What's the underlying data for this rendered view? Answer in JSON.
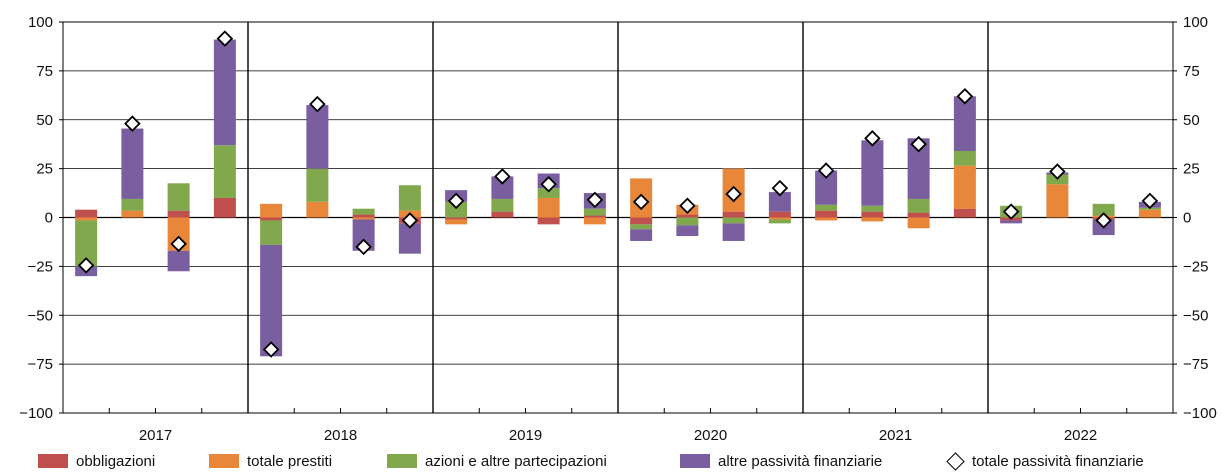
{
  "chart_data": {
    "type": "bar",
    "stacked": true,
    "title": "",
    "xlabel": "",
    "ylabel": "",
    "ylim": [
      -100,
      100
    ],
    "yticks": [
      -100,
      -75,
      -50,
      -25,
      0,
      25,
      50,
      75,
      100
    ],
    "ytick_labels": [
      "−100",
      "−75",
      "−50",
      "−25",
      "0",
      "25",
      "50",
      "75",
      "100"
    ],
    "y_axis_sides": [
      "left",
      "right"
    ],
    "grid": true,
    "legend_position": "bottom",
    "years": [
      "2017",
      "2018",
      "2019",
      "2020",
      "2021",
      "2022"
    ],
    "categories": [
      "2017 Q1",
      "2017 Q2",
      "2017 Q3",
      "2017 Q4",
      "2018 Q1",
      "2018 Q2",
      "2018 Q3",
      "2018 Q4",
      "2019 Q1",
      "2019 Q2",
      "2019 Q3",
      "2019 Q4",
      "2020 Q1",
      "2020 Q2",
      "2020 Q3",
      "2020 Q4",
      "2021 Q1",
      "2021 Q2",
      "2021 Q3",
      "2021 Q4",
      "2022 Q1",
      "2022 Q2",
      "2022 Q3",
      "2022 Q4"
    ],
    "series": [
      {
        "name": "obbligazioni",
        "color": "#c0504d",
        "values": [
          4.0,
          0,
          3.5,
          10.0,
          -1.5,
          0,
          1.5,
          -3.0,
          -1.0,
          3.0,
          -3.5,
          1.0,
          -3.5,
          1.5,
          3.0,
          3.0,
          3.5,
          3.0,
          2.5,
          4.5,
          -1.5,
          0,
          -1.0,
          0
        ]
      },
      {
        "name": "totale prestiti",
        "color": "#e8873a",
        "values": [
          -1.5,
          3.5,
          -17.0,
          0,
          7.0,
          8.0,
          -1.0,
          3.5,
          -2.5,
          0,
          10.0,
          -3.5,
          20.0,
          5.0,
          22.0,
          -1.0,
          -1.5,
          -2.0,
          -5.5,
          22.0,
          0,
          17.0,
          1.0,
          4.0
        ]
      },
      {
        "name": "azioni e altre partecipazioni",
        "color": "#82a84e",
        "values": [
          -23.5,
          6.0,
          14.0,
          27.0,
          -12.5,
          17.0,
          3.0,
          13.0,
          8.0,
          6.5,
          5.0,
          3.5,
          -2.5,
          -4.0,
          -3.0,
          -2.0,
          3.0,
          3.0,
          7.0,
          7.5,
          6.0,
          5.0,
          6.0,
          1.0
        ]
      },
      {
        "name": "altre passività finanziarie",
        "color": "#7a5fa0",
        "values": [
          -5.0,
          36.0,
          -10.5,
          54.0,
          -57.0,
          32.5,
          -16.0,
          -15.5,
          6.0,
          11.5,
          7.5,
          8.0,
          -6.0,
          -5.5,
          -9.0,
          10.0,
          17.5,
          33.5,
          31.0,
          28.0,
          -1.5,
          1.0,
          -8.0,
          3.0
        ]
      }
    ],
    "total": {
      "name": "totale passività finanziarie",
      "marker": "diamond",
      "values": [
        -24.5,
        48.0,
        -13.5,
        91.5,
        -67.5,
        58.0,
        -15.0,
        -1.5,
        8.5,
        21.0,
        17.0,
        9.0,
        8.0,
        6.0,
        12.0,
        15.0,
        24.0,
        40.5,
        37.5,
        62.0,
        3.0,
        23.5,
        -1.5,
        8.5
      ]
    }
  }
}
